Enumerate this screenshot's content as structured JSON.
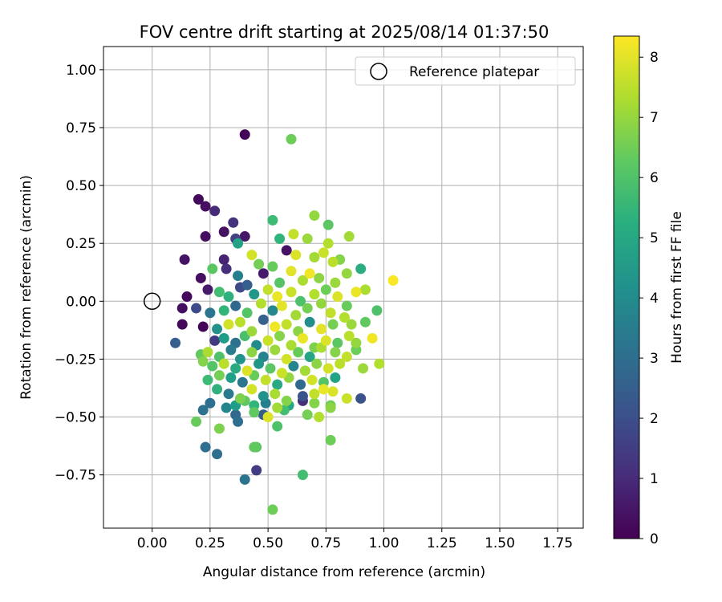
{
  "chart_data": {
    "type": "scatter",
    "title": "FOV centre drift starting at 2025/08/14 01:37:50",
    "xlabel": "Angular distance from reference (arcmin)",
    "ylabel": "Rotation from reference (arcmin)",
    "xlim": [
      -0.21,
      1.86
    ],
    "ylim": [
      -0.98,
      1.1
    ],
    "x_ticks": [
      0.0,
      0.25,
      0.5,
      0.75,
      1.0,
      1.25,
      1.5,
      1.75
    ],
    "x_tick_labels": [
      "0.00",
      "0.25",
      "0.50",
      "0.75",
      "1.00",
      "1.25",
      "1.50",
      "1.75"
    ],
    "y_ticks": [
      -0.75,
      -0.5,
      -0.25,
      0.0,
      0.25,
      0.5,
      0.75,
      1.0
    ],
    "y_tick_labels": [
      "−0.75",
      "−0.50",
      "−0.25",
      "0.00",
      "0.25",
      "0.50",
      "0.75",
      "1.00"
    ],
    "grid": true,
    "legend": {
      "placement": "top-right",
      "entries": [
        "Reference platepar"
      ]
    },
    "reference_point": {
      "x": 0.0,
      "y": 0.0,
      "label": "Reference platepar"
    },
    "colorbar": {
      "label": "Hours from first FF file",
      "min": 0,
      "max": 8.35,
      "ticks": [
        0,
        1,
        2,
        3,
        4,
        5,
        6,
        7,
        8
      ],
      "tick_labels": [
        "0",
        "1",
        "2",
        "3",
        "4",
        "5",
        "6",
        "7",
        "8"
      ],
      "colormap": "viridis"
    },
    "points": [
      [
        0.4,
        0.72,
        0.1
      ],
      [
        0.6,
        0.7,
        6.5
      ],
      [
        0.2,
        0.44,
        0.2
      ],
      [
        0.23,
        0.41,
        0.3
      ],
      [
        0.27,
        0.39,
        1.0
      ],
      [
        0.35,
        0.34,
        1.2
      ],
      [
        0.52,
        0.35,
        5.7
      ],
      [
        0.7,
        0.37,
        7.0
      ],
      [
        0.76,
        0.33,
        6.2
      ],
      [
        0.23,
        0.28,
        0.3
      ],
      [
        0.31,
        0.3,
        0.4
      ],
      [
        0.36,
        0.27,
        1.6
      ],
      [
        0.4,
        0.28,
        0.5
      ],
      [
        0.37,
        0.25,
        4.8
      ],
      [
        0.55,
        0.27,
        5.4
      ],
      [
        0.61,
        0.29,
        7.6
      ],
      [
        0.67,
        0.27,
        7.1
      ],
      [
        0.76,
        0.25,
        7.4
      ],
      [
        0.85,
        0.28,
        7.2
      ],
      [
        0.14,
        0.18,
        0.4
      ],
      [
        0.31,
        0.18,
        0.8
      ],
      [
        0.43,
        0.2,
        7.8
      ],
      [
        0.46,
        0.16,
        6.6
      ],
      [
        0.52,
        0.15,
        6.4
      ],
      [
        0.58,
        0.22,
        0.4
      ],
      [
        0.62,
        0.2,
        7.9
      ],
      [
        0.7,
        0.19,
        7.2
      ],
      [
        0.74,
        0.21,
        7.7
      ],
      [
        0.78,
        0.17,
        7.5
      ],
      [
        0.81,
        0.18,
        6.8
      ],
      [
        0.21,
        0.1,
        0.3
      ],
      [
        0.26,
        0.14,
        6.2
      ],
      [
        0.32,
        0.14,
        1.1
      ],
      [
        0.37,
        0.11,
        3.6
      ],
      [
        0.41,
        0.07,
        2.5
      ],
      [
        0.48,
        0.12,
        0.6
      ],
      [
        0.55,
        0.08,
        6.1
      ],
      [
        0.6,
        0.13,
        8.0
      ],
      [
        0.65,
        0.09,
        7.3
      ],
      [
        0.68,
        0.12,
        8.2
      ],
      [
        0.72,
        0.1,
        6.9
      ],
      [
        0.79,
        0.08,
        7.1
      ],
      [
        0.84,
        0.12,
        7.0
      ],
      [
        0.9,
        0.14,
        5.2
      ],
      [
        0.92,
        0.05,
        7.3
      ],
      [
        1.04,
        0.09,
        8.3
      ],
      [
        0.15,
        0.02,
        0.2
      ],
      [
        0.24,
        0.05,
        0.6
      ],
      [
        0.29,
        0.04,
        5.8
      ],
      [
        0.33,
        0.02,
        5.3
      ],
      [
        0.38,
        0.06,
        1.9
      ],
      [
        0.44,
        0.03,
        4.4
      ],
      [
        0.5,
        0.05,
        7.6
      ],
      [
        0.54,
        0.02,
        8.1
      ],
      [
        0.6,
        0.04,
        7.7
      ],
      [
        0.64,
        0.0,
        6.0
      ],
      [
        0.7,
        0.03,
        7.4
      ],
      [
        0.75,
        0.05,
        6.5
      ],
      [
        0.8,
        0.02,
        7.9
      ],
      [
        0.88,
        0.04,
        8.1
      ],
      [
        0.13,
        -0.03,
        0.3
      ],
      [
        0.19,
        -0.03,
        1.9
      ],
      [
        0.25,
        -0.05,
        3.3
      ],
      [
        0.31,
        -0.04,
        5.5
      ],
      [
        0.36,
        -0.02,
        2.8
      ],
      [
        0.41,
        -0.05,
        6.1
      ],
      [
        0.47,
        -0.01,
        7.4
      ],
      [
        0.52,
        -0.04,
        3.9
      ],
      [
        0.56,
        -0.02,
        8.0
      ],
      [
        0.62,
        -0.06,
        7.2
      ],
      [
        0.67,
        -0.03,
        6.6
      ],
      [
        0.73,
        -0.01,
        7.0
      ],
      [
        0.77,
        -0.05,
        7.6
      ],
      [
        0.84,
        -0.02,
        6.4
      ],
      [
        0.97,
        -0.04,
        6.0
      ],
      [
        0.13,
        -0.1,
        0.2
      ],
      [
        0.22,
        -0.11,
        0.1
      ],
      [
        0.28,
        -0.12,
        4.2
      ],
      [
        0.33,
        -0.1,
        7.8
      ],
      [
        0.38,
        -0.09,
        7.5
      ],
      [
        0.43,
        -0.13,
        7.1
      ],
      [
        0.48,
        -0.08,
        2.6
      ],
      [
        0.53,
        -0.11,
        8.2
      ],
      [
        0.58,
        -0.1,
        7.6
      ],
      [
        0.63,
        -0.13,
        6.9
      ],
      [
        0.68,
        -0.09,
        4.1
      ],
      [
        0.73,
        -0.12,
        8.0
      ],
      [
        0.78,
        -0.1,
        6.6
      ],
      [
        0.83,
        -0.07,
        7.4
      ],
      [
        0.86,
        -0.1,
        7.1
      ],
      [
        0.92,
        -0.09,
        6.3
      ],
      [
        0.1,
        -0.18,
        2.5
      ],
      [
        0.27,
        -0.17,
        1.4
      ],
      [
        0.31,
        -0.16,
        4.6
      ],
      [
        0.36,
        -0.18,
        3.1
      ],
      [
        0.4,
        -0.15,
        5.9
      ],
      [
        0.45,
        -0.19,
        4.0
      ],
      [
        0.5,
        -0.17,
        7.7
      ],
      [
        0.55,
        -0.15,
        6.8
      ],
      [
        0.6,
        -0.19,
        7.3
      ],
      [
        0.65,
        -0.16,
        8.1
      ],
      [
        0.7,
        -0.2,
        6.7
      ],
      [
        0.75,
        -0.17,
        7.9
      ],
      [
        0.8,
        -0.18,
        6.2
      ],
      [
        0.85,
        -0.15,
        7.5
      ],
      [
        0.88,
        -0.18,
        7.0
      ],
      [
        0.95,
        -0.16,
        8.2
      ],
      [
        0.21,
        -0.23,
        6.3
      ],
      [
        0.24,
        -0.22,
        7.3
      ],
      [
        0.29,
        -0.24,
        6.0
      ],
      [
        0.34,
        -0.21,
        3.5
      ],
      [
        0.38,
        -0.25,
        4.3
      ],
      [
        0.43,
        -0.22,
        6.9
      ],
      [
        0.48,
        -0.24,
        3.7
      ],
      [
        0.53,
        -0.21,
        7.1
      ],
      [
        0.58,
        -0.25,
        7.8
      ],
      [
        0.63,
        -0.22,
        6.4
      ],
      [
        0.68,
        -0.24,
        4.9
      ],
      [
        0.73,
        -0.2,
        7.3
      ],
      [
        0.79,
        -0.22,
        6.8
      ],
      [
        0.84,
        -0.24,
        7.6
      ],
      [
        0.88,
        -0.21,
        6.5
      ],
      [
        0.22,
        -0.26,
        6.8
      ],
      [
        0.26,
        -0.28,
        6.1
      ],
      [
        0.31,
        -0.27,
        7.5
      ],
      [
        0.36,
        -0.29,
        5.1
      ],
      [
        0.41,
        -0.3,
        7.9
      ],
      [
        0.46,
        -0.27,
        4.4
      ],
      [
        0.51,
        -0.29,
        6.2
      ],
      [
        0.56,
        -0.31,
        7.7
      ],
      [
        0.61,
        -0.28,
        3.8
      ],
      [
        0.66,
        -0.3,
        7.2
      ],
      [
        0.71,
        -0.27,
        6.9
      ],
      [
        0.76,
        -0.29,
        7.8
      ],
      [
        0.81,
        -0.27,
        7.5
      ],
      [
        0.91,
        -0.29,
        7.1
      ],
      [
        0.98,
        -0.27,
        7.4
      ],
      [
        0.24,
        -0.34,
        5.7
      ],
      [
        0.29,
        -0.32,
        6.6
      ],
      [
        0.34,
        -0.33,
        4.7
      ],
      [
        0.39,
        -0.35,
        3.3
      ],
      [
        0.44,
        -0.32,
        6.4
      ],
      [
        0.49,
        -0.34,
        7.6
      ],
      [
        0.54,
        -0.36,
        5.0
      ],
      [
        0.59,
        -0.33,
        7.0
      ],
      [
        0.64,
        -0.36,
        2.9
      ],
      [
        0.69,
        -0.34,
        7.8
      ],
      [
        0.74,
        -0.35,
        6.1
      ],
      [
        0.79,
        -0.33,
        4.8
      ],
      [
        0.28,
        -0.38,
        5.3
      ],
      [
        0.33,
        -0.4,
        3.4
      ],
      [
        0.38,
        -0.42,
        6.7
      ],
      [
        0.43,
        -0.38,
        7.8
      ],
      [
        0.48,
        -0.41,
        4.2
      ],
      [
        0.53,
        -0.4,
        7.3
      ],
      [
        0.58,
        -0.43,
        6.8
      ],
      [
        0.65,
        -0.41,
        2.2
      ],
      [
        0.7,
        -0.4,
        7.6
      ],
      [
        0.74,
        -0.38,
        8.1
      ],
      [
        0.78,
        -0.39,
        7.9
      ],
      [
        0.25,
        -0.44,
        3.0
      ],
      [
        0.32,
        -0.46,
        3.8
      ],
      [
        0.36,
        -0.45,
        4.6
      ],
      [
        0.4,
        -0.43,
        6.3
      ],
      [
        0.44,
        -0.45,
        5.5
      ],
      [
        0.49,
        -0.44,
        3.6
      ],
      [
        0.54,
        -0.46,
        7.2
      ],
      [
        0.59,
        -0.45,
        4.9
      ],
      [
        0.65,
        -0.43,
        1.1
      ],
      [
        0.7,
        -0.44,
        6.8
      ],
      [
        0.77,
        -0.45,
        6.5
      ],
      [
        0.84,
        -0.42,
        7.7
      ],
      [
        0.9,
        -0.42,
        2.1
      ],
      [
        0.22,
        -0.47,
        3.1
      ],
      [
        0.36,
        -0.49,
        2.8
      ],
      [
        0.44,
        -0.48,
        6.3
      ],
      [
        0.48,
        -0.49,
        2.4
      ],
      [
        0.57,
        -0.47,
        5.8
      ],
      [
        0.67,
        -0.49,
        6.6
      ],
      [
        0.72,
        -0.5,
        7.4
      ],
      [
        0.77,
        -0.46,
        6.9
      ],
      [
        0.19,
        -0.52,
        6.4
      ],
      [
        0.37,
        -0.52,
        3.0
      ],
      [
        0.5,
        -0.5,
        7.9
      ],
      [
        0.54,
        -0.54,
        6.0
      ],
      [
        0.29,
        -0.55,
        6.7
      ],
      [
        0.23,
        -0.63,
        3.0
      ],
      [
        0.44,
        -0.63,
        6.3
      ],
      [
        0.45,
        -0.63,
        6.2
      ],
      [
        0.28,
        -0.66,
        3.0
      ],
      [
        0.77,
        -0.6,
        6.5
      ],
      [
        0.45,
        -0.73,
        1.5
      ],
      [
        0.4,
        -0.77,
        3.2
      ],
      [
        0.65,
        -0.75,
        5.8
      ],
      [
        0.52,
        -0.9,
        6.5
      ]
    ]
  }
}
